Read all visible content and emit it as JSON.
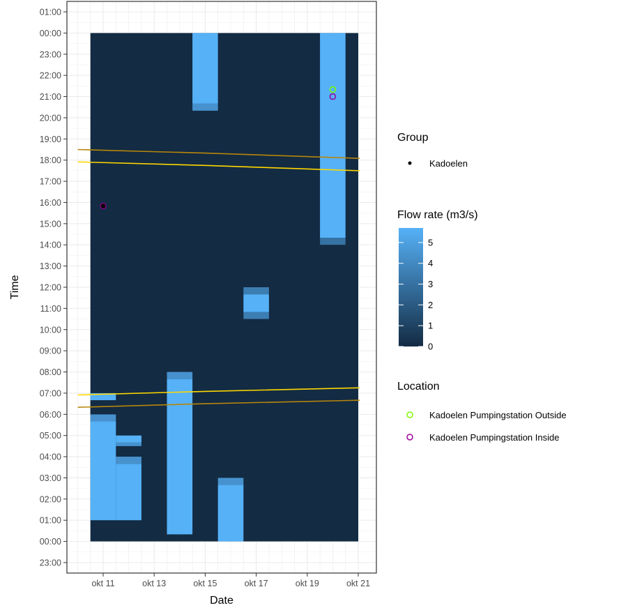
{
  "chart_data": {
    "type": "heatmap",
    "title": "",
    "xlabel": "Date",
    "ylabel": "Time",
    "x_ticks": [
      "okt 11",
      "okt 13",
      "okt 15",
      "okt 17",
      "okt 19",
      "okt 21"
    ],
    "y_ticks": [
      "23:00",
      "00:00",
      "01:00",
      "02:00",
      "03:00",
      "04:00",
      "05:00",
      "06:00",
      "07:00",
      "08:00",
      "09:00",
      "10:00",
      "11:00",
      "12:00",
      "13:00",
      "14:00",
      "15:00",
      "16:00",
      "17:00",
      "18:00",
      "19:00",
      "20:00",
      "21:00",
      "22:00",
      "23:00",
      "00:00",
      "01:00"
    ],
    "grid": true,
    "tiles": [
      {
        "date": "okt 11",
        "start": "00:00",
        "end": "24:00",
        "flow": 0
      },
      {
        "date": "okt 11",
        "start": "01:00",
        "end": "05:40",
        "flow": 5.7
      },
      {
        "date": "okt 11",
        "start": "05:40",
        "end": "06:00",
        "flow": 4.4
      },
      {
        "date": "okt 11",
        "start": "06:00",
        "end": "06:40",
        "flow": 0
      },
      {
        "date": "okt 11",
        "start": "06:40",
        "end": "07:00",
        "flow": 5.7
      },
      {
        "date": "okt 12",
        "start": "01:00",
        "end": "03:40",
        "flow": 5.7
      },
      {
        "date": "okt 12",
        "start": "03:40",
        "end": "04:00",
        "flow": 4.4
      },
      {
        "date": "okt 12",
        "start": "04:30",
        "end": "04:40",
        "flow": 4.4
      },
      {
        "date": "okt 12",
        "start": "04:40",
        "end": "05:00",
        "flow": 5.7
      },
      {
        "date": "okt 14",
        "start": "00:20",
        "end": "07:40",
        "flow": 5.7
      },
      {
        "date": "okt 14",
        "start": "07:40",
        "end": "08:00",
        "flow": 4.4
      },
      {
        "date": "okt 15",
        "start": "20:20",
        "end": "20:40",
        "flow": 4.4
      },
      {
        "date": "okt 15",
        "start": "20:40",
        "end": "24:00",
        "flow": 5.7
      },
      {
        "date": "okt 16",
        "start": "00:00",
        "end": "02:40",
        "flow": 5.7
      },
      {
        "date": "okt 16",
        "start": "02:40",
        "end": "03:00",
        "flow": 4.4
      },
      {
        "date": "okt 17",
        "start": "10:30",
        "end": "10:50",
        "flow": 3.5
      },
      {
        "date": "okt 17",
        "start": "10:50",
        "end": "11:40",
        "flow": 5.7
      },
      {
        "date": "okt 17",
        "start": "11:40",
        "end": "12:00",
        "flow": 3.5
      },
      {
        "date": "okt 20",
        "start": "14:00",
        "end": "14:20",
        "flow": 3.0
      },
      {
        "date": "okt 20",
        "start": "14:20",
        "end": "24:00",
        "flow": 5.7
      }
    ],
    "lines": [
      {
        "points": [
          [
            "okt 10",
            "06:20"
          ],
          [
            "okt 15",
            "06:30"
          ],
          [
            "okt 21",
            "06:40"
          ]
        ],
        "color": "#b8860b"
      },
      {
        "points": [
          [
            "okt 10",
            "06:55"
          ],
          [
            "okt 15",
            "07:05"
          ],
          [
            "okt 21",
            "07:15"
          ]
        ],
        "color": "#ffd700"
      },
      {
        "points": [
          [
            "okt 10",
            "17:55"
          ],
          [
            "okt 15",
            "17:45"
          ],
          [
            "okt 21",
            "17:30"
          ]
        ],
        "color": "#ffd700"
      },
      {
        "points": [
          [
            "okt 10",
            "18:30"
          ],
          [
            "okt 15",
            "18:20"
          ],
          [
            "okt 21",
            "18:05"
          ]
        ],
        "color": "#b8860b"
      }
    ],
    "points": [
      {
        "date": "okt 11",
        "time": "15:50",
        "group": "Kadoelen"
      },
      {
        "date": "okt 20",
        "time": "21:20",
        "location": "Kadoelen Pumpingstation Outside"
      },
      {
        "date": "okt 20",
        "time": "21:00",
        "location": "Kadoelen Pumpingstation Inside"
      }
    ],
    "legends": {
      "group": {
        "title": "Group",
        "items": [
          {
            "label": "Kadoelen",
            "color": "#000000"
          }
        ]
      },
      "flow": {
        "title": "Flow rate (m3/s)",
        "ticks": [
          "0",
          "1",
          "2",
          "3",
          "4",
          "5"
        ],
        "range": [
          0,
          5.7
        ],
        "low_color": "#132b43",
        "high_color": "#56b1f7"
      },
      "location": {
        "title": "Location",
        "items": [
          {
            "label": "Kadoelen Pumpingstation Outside",
            "color": "#7cfc00"
          },
          {
            "label": "Kadoelen Pumpingstation Inside",
            "color": "#9b009b"
          }
        ]
      }
    }
  }
}
